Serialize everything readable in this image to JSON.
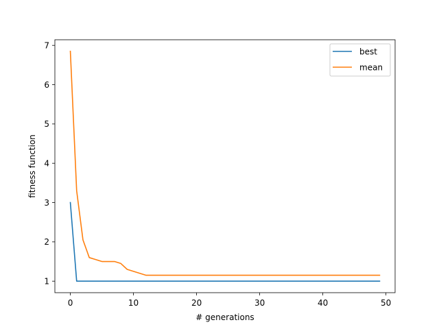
{
  "chart_data": {
    "type": "line",
    "xlabel": "# generations",
    "ylabel": "fitness function",
    "xlim": [
      -2.45,
      51.45
    ],
    "ylim": [
      0.707,
      7.143
    ],
    "xticks": [
      0,
      10,
      20,
      30,
      40,
      50
    ],
    "yticks": [
      1,
      2,
      3,
      4,
      5,
      6,
      7
    ],
    "grid": false,
    "legend_position": "top-right",
    "series": [
      {
        "name": "best",
        "color": "#1f77b4",
        "x": [
          0,
          1,
          2,
          3,
          4,
          5,
          6,
          7,
          8,
          9,
          10,
          11,
          12,
          13,
          14,
          15,
          16,
          17,
          18,
          19,
          20,
          21,
          22,
          23,
          24,
          25,
          26,
          27,
          28,
          29,
          30,
          31,
          32,
          33,
          34,
          35,
          36,
          37,
          38,
          39,
          40,
          41,
          42,
          43,
          44,
          45,
          46,
          47,
          48,
          49
        ],
        "values": [
          3.0,
          1.0,
          1.0,
          1.0,
          1.0,
          1.0,
          1.0,
          1.0,
          1.0,
          1.0,
          1.0,
          1.0,
          1.0,
          1.0,
          1.0,
          1.0,
          1.0,
          1.0,
          1.0,
          1.0,
          1.0,
          1.0,
          1.0,
          1.0,
          1.0,
          1.0,
          1.0,
          1.0,
          1.0,
          1.0,
          1.0,
          1.0,
          1.0,
          1.0,
          1.0,
          1.0,
          1.0,
          1.0,
          1.0,
          1.0,
          1.0,
          1.0,
          1.0,
          1.0,
          1.0,
          1.0,
          1.0,
          1.0,
          1.0,
          1.0
        ]
      },
      {
        "name": "mean",
        "color": "#ff7f0e",
        "x": [
          0,
          1,
          2,
          3,
          4,
          5,
          6,
          7,
          8,
          9,
          10,
          11,
          12,
          13,
          14,
          15,
          16,
          17,
          18,
          19,
          20,
          21,
          22,
          23,
          24,
          25,
          26,
          27,
          28,
          29,
          30,
          31,
          32,
          33,
          34,
          35,
          36,
          37,
          38,
          39,
          40,
          41,
          42,
          43,
          44,
          45,
          46,
          47,
          48,
          49
        ],
        "values": [
          6.85,
          3.3,
          2.05,
          1.6,
          1.55,
          1.5,
          1.5,
          1.5,
          1.45,
          1.3,
          1.25,
          1.2,
          1.15,
          1.15,
          1.15,
          1.15,
          1.15,
          1.15,
          1.15,
          1.15,
          1.15,
          1.15,
          1.15,
          1.15,
          1.15,
          1.15,
          1.15,
          1.15,
          1.15,
          1.15,
          1.15,
          1.15,
          1.15,
          1.15,
          1.15,
          1.15,
          1.15,
          1.15,
          1.15,
          1.15,
          1.15,
          1.15,
          1.15,
          1.15,
          1.15,
          1.15,
          1.15,
          1.15,
          1.15,
          1.15
        ]
      }
    ]
  }
}
